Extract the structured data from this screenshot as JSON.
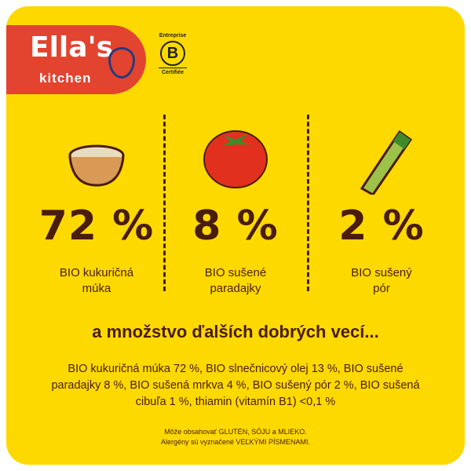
{
  "brand": {
    "logo_text": "Ella's",
    "logo_sub": "kitchen",
    "cert_top": "Entreprise",
    "cert_letter": "B",
    "cert_bottom": "Certifiée"
  },
  "colors": {
    "background": "#fdd900",
    "text": "#4a1c0c",
    "logo": "#e2442f"
  },
  "ingredients": [
    {
      "icon": "flour-bowl-icon",
      "percent": "72 %",
      "label_line1": "BIO kukuričná",
      "label_line2": "múka"
    },
    {
      "icon": "tomato-icon",
      "percent": "8 %",
      "label_line1": "BIO sušené",
      "label_line2": "paradajky"
    },
    {
      "icon": "leek-icon",
      "percent": "2 %",
      "label_line1": "BIO sušený",
      "label_line2": "pór"
    }
  ],
  "headline": "a množstvo ďalších dobrých vecí...",
  "ingredient_list": "BIO kukuričná múka 72 %, BIO slnečnicový olej 13 %, BIO sušené paradajky 8 %, BIO sušená mrkva 4 %, BIO sušený pór 2 %, BIO sušená cibuľa 1 %, thiamin (vitamín B1) <0,1 %",
  "allergens_line1": "Môže obsahovať GLUTÉN, SÓJU a MLIEKO.",
  "allergens_line2": "Alergény sú vyznačené VEĽKÝMI PÍSMENAMI."
}
